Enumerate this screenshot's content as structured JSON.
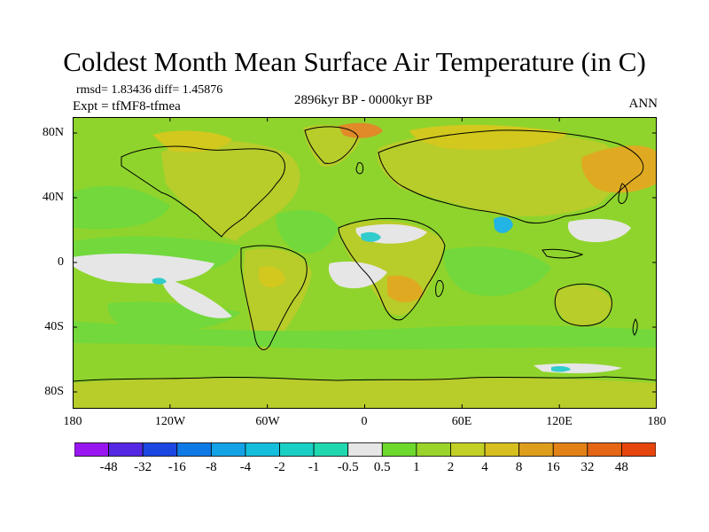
{
  "header": {
    "title": "Coldest Month Mean Surface Air Temperature (in C)",
    "stats": "rmsd= 1.83436 diff= 1.45876",
    "experiment": "Expt = tfMF8-tfmea",
    "period": "2896kyr BP - 0000kyr BP",
    "season": "ANN"
  },
  "axes": {
    "y_ticks": [
      "80N",
      "40N",
      "0",
      "40S",
      "80S"
    ],
    "x_ticks": [
      "180",
      "120W",
      "60W",
      "0",
      "60E",
      "120E",
      "180"
    ]
  },
  "colors": {
    "ocean_base": "#8fd42c",
    "land_base": "#b8cc2a",
    "light_green": "#a5d82a",
    "mid_green": "#72d83c",
    "neutral_white": "#e6e6e6",
    "cyan_light": "#33cccc",
    "cyan_deep": "#22b4e4",
    "warm_yellow": "#d2c81e",
    "warm_orange": "#dfaa22",
    "warm_red": "#e08a2a",
    "coastline": "#000000"
  },
  "colorbar": {
    "labels": [
      "-48",
      "-32",
      "-16",
      "-8",
      "-4",
      "-2",
      "-1",
      "-0.5",
      "0.5",
      "1",
      "2",
      "4",
      "8",
      "16",
      "32",
      "48"
    ],
    "colors": [
      "#9a16f0",
      "#5428e2",
      "#1c46e2",
      "#0f7ae6",
      "#13a2e6",
      "#14bedc",
      "#1ad0c4",
      "#20d8b0",
      "#e6e6e6",
      "#6cd92c",
      "#9ad42a",
      "#c2d026",
      "#d6bf1f",
      "#de9e1c",
      "#e28116",
      "#e56614",
      "#e6460e"
    ]
  }
}
